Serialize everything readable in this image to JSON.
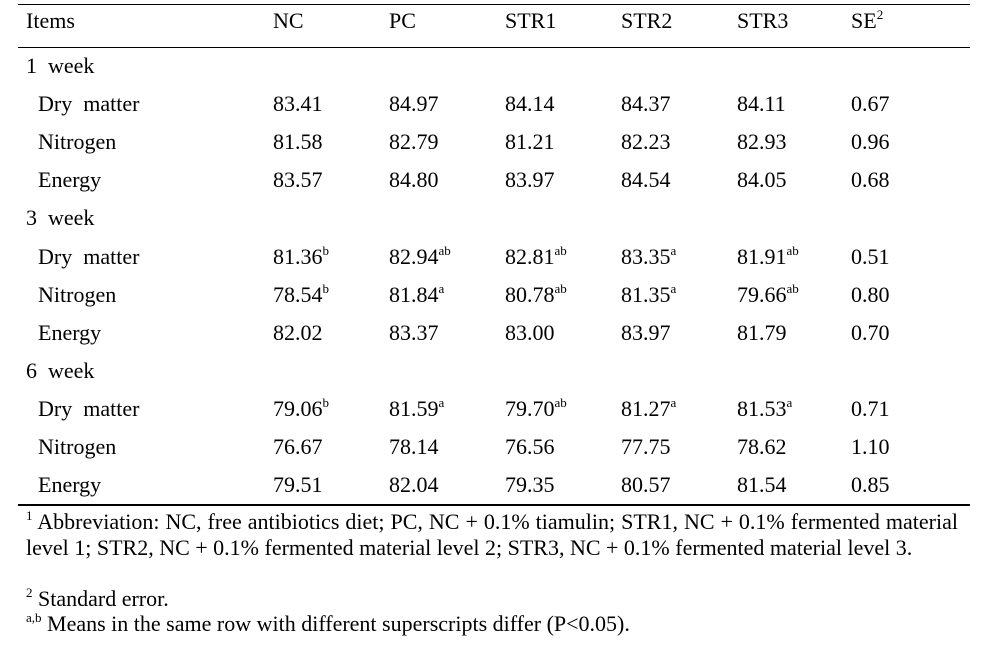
{
  "table": {
    "header": [
      "Items",
      "NC",
      "PC",
      "STR1",
      "STR2",
      "STR3",
      {
        "text": "SE",
        "sup": "2"
      }
    ],
    "sections": [
      {
        "title": "1  week",
        "rows": [
          [
            "Dry  matter",
            "83.41",
            "84.97",
            "84.14",
            "84.37",
            "84.11",
            "0.67"
          ],
          [
            "Nitrogen",
            "81.58",
            "82.79",
            "81.21",
            "82.23",
            "82.93",
            "0.96"
          ],
          [
            "Energy",
            "83.57",
            "84.80",
            "83.97",
            "84.54",
            "84.05",
            "0.68"
          ]
        ]
      },
      {
        "title": "3  week",
        "rows": [
          [
            "Dry  matter",
            {
              "text": "81.36",
              "sup": "b"
            },
            {
              "text": "82.94",
              "sup": "ab"
            },
            {
              "text": "82.81",
              "sup": "ab"
            },
            {
              "text": "83.35",
              "sup": "a"
            },
            {
              "text": "81.91",
              "sup": "ab"
            },
            "0.51"
          ],
          [
            "Nitrogen",
            {
              "text": "78.54",
              "sup": "b"
            },
            {
              "text": "81.84",
              "sup": "a"
            },
            {
              "text": "80.78",
              "sup": "ab"
            },
            {
              "text": "81.35",
              "sup": "a"
            },
            {
              "text": "79.66",
              "sup": "ab"
            },
            "0.80"
          ],
          [
            "Energy",
            "82.02",
            "83.37",
            "83.00",
            "83.97",
            "81.79",
            "0.70"
          ]
        ]
      },
      {
        "title": "6  week",
        "rows": [
          [
            "Dry  matter",
            {
              "text": "79.06",
              "sup": "b"
            },
            {
              "text": "81.59",
              "sup": "a"
            },
            {
              "text": "79.70",
              "sup": "ab"
            },
            {
              "text": "81.27",
              "sup": "a"
            },
            {
              "text": "81.53",
              "sup": "a"
            },
            "0.71"
          ],
          [
            "Nitrogen",
            "76.67",
            "78.14",
            "76.56",
            "77.75",
            "78.62",
            "1.10"
          ],
          [
            "Energy",
            "79.51",
            "82.04",
            "79.35",
            "80.57",
            "81.54",
            "0.85"
          ]
        ]
      }
    ]
  },
  "footnotes": [
    {
      "mark": "1",
      "text": "Abbreviation: NC, free antibiotics diet; PC, NC + 0.1% tiamulin; STR1, NC + 0.1% fermented material level 1; STR2, NC + 0.1% fermented material level 2; STR3, NC + 0.1% fermented material level 3."
    },
    {
      "mark": "2",
      "text": "Standard error."
    },
    {
      "mark": "a,b",
      "text": "Means in the same row with different superscripts differ (P<0.05)."
    }
  ]
}
